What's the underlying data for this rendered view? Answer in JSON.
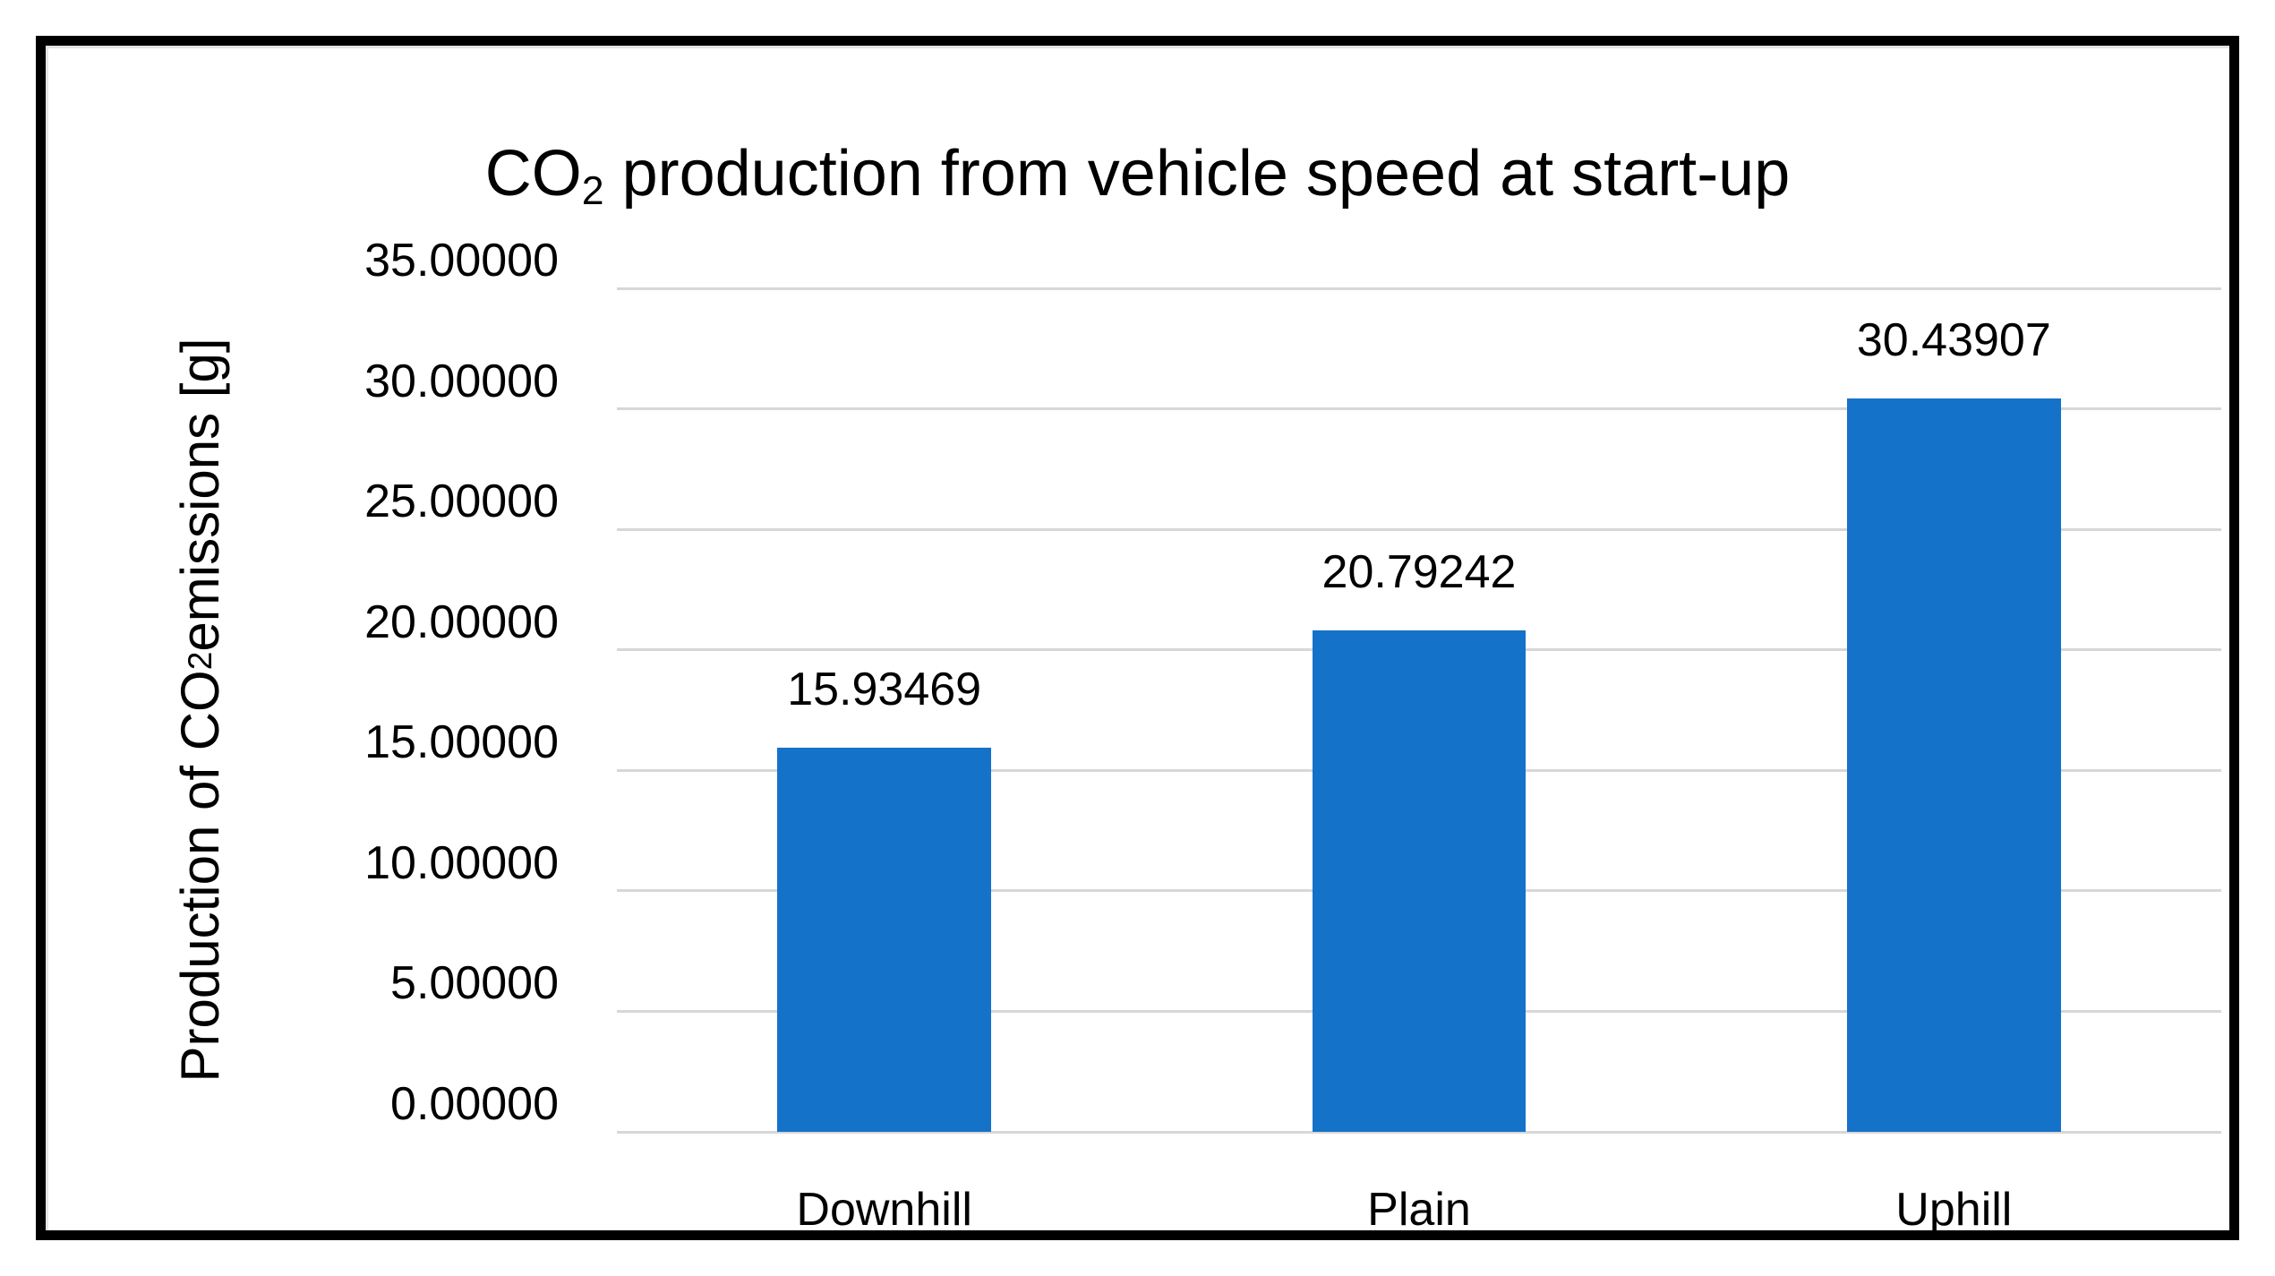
{
  "chart": {
    "title": {
      "prefix": "CO",
      "subscript": "2",
      "suffix": " production from vehicle speed at start-up"
    },
    "y_axis_title": {
      "prefix": "Production of CO",
      "subscript": "2",
      "suffix": " emissions [g]"
    }
  },
  "chart_data": {
    "type": "bar",
    "title": "CO2 production from vehicle speed at start-up",
    "categories": [
      "Downhill",
      "Plain",
      "Uphill"
    ],
    "values": [
      15.93469,
      20.79242,
      30.43907
    ],
    "data_labels": [
      "15.93469",
      "20.79242",
      "30.43907"
    ],
    "xlabel": "",
    "ylabel": "Production of CO2 emissions [g]",
    "ylim": [
      0,
      35
    ],
    "ytick_step": 5,
    "ytick_labels": [
      "0.00000",
      "5.00000",
      "10.00000",
      "15.00000",
      "20.00000",
      "25.00000",
      "30.00000",
      "35.00000"
    ],
    "grid": true,
    "legend": false,
    "bar_color": "#1572C9",
    "gridline_color": "#D7D7D7",
    "text_color": "#000000",
    "frame_border_color": "#000000",
    "background_color": "#FFFFFF"
  }
}
